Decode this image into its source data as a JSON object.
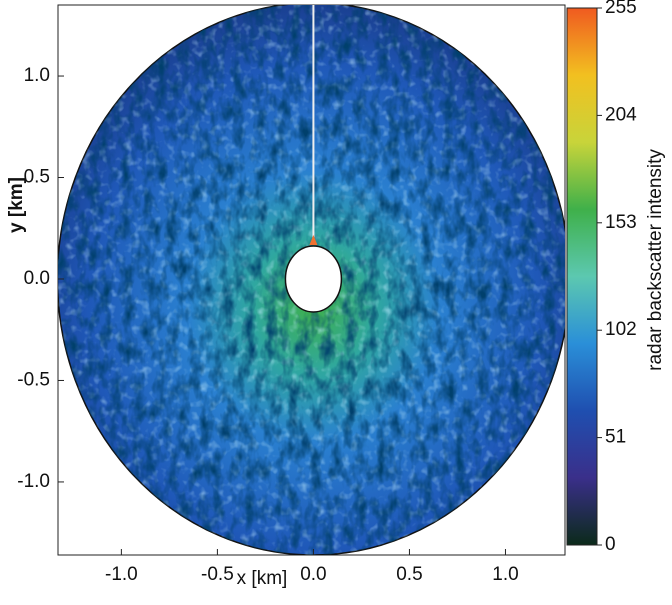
{
  "chart_data": {
    "type": "radar-image",
    "xlabel": "x [km]",
    "ylabel": "y [km]",
    "colorbar_label": "radar backscatter intensity",
    "xlim": [
      -1.33,
      1.31
    ],
    "ylim": [
      -1.36,
      1.35
    ],
    "xticks": [
      {
        "value": -1,
        "label": "-1.0"
      },
      {
        "value": -0.5,
        "label": "-0.5"
      },
      {
        "value": 0,
        "label": "0.0"
      },
      {
        "value": 0.5,
        "label": "0.5"
      },
      {
        "value": 1,
        "label": "1.0"
      }
    ],
    "yticks": [
      {
        "value": -1,
        "label": "-1.0"
      },
      {
        "value": -0.5,
        "label": "-0.5"
      },
      {
        "value": 0,
        "label": "0.0"
      },
      {
        "value": 0.5,
        "label": "0.5"
      },
      {
        "value": 1,
        "label": "1.0"
      }
    ],
    "clim": [
      0,
      255
    ],
    "cticks": [
      0,
      51,
      102,
      153,
      204,
      255
    ],
    "colormap": [
      "#0b2a1a",
      "#3a2f8a",
      "#1f4fb0",
      "#2a8fd8",
      "#5cc8b0",
      "#3fb04a",
      "#c8d43a",
      "#f2c020",
      "#f05a20"
    ]
  }
}
